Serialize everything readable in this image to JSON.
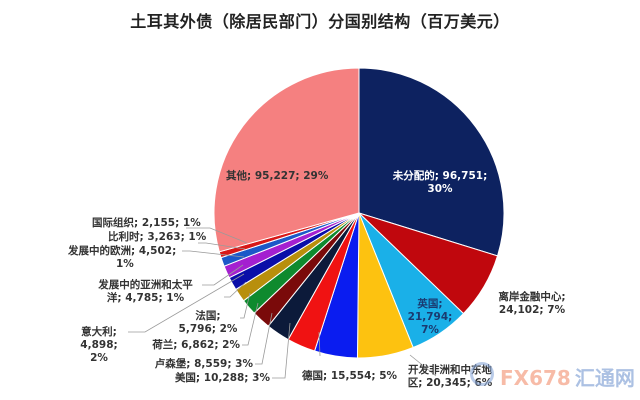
{
  "chart_data": {
    "type": "pie",
    "title": "土耳其外债（除居民部门）分国别结构（百万美元）",
    "unit": "百万美元",
    "start_angle_deg": 0,
    "direction": "clockwise",
    "slices": [
      {
        "name": "未分配的",
        "value": 96751,
        "pct": "30%",
        "color": "#0d2260"
      },
      {
        "name": "离岸金融中心",
        "value": 24102,
        "pct": "7%",
        "color": "#c0070d"
      },
      {
        "name": "英国",
        "value": 21794,
        "pct": "7%",
        "color": "#1ab0e8"
      },
      {
        "name": "开发非洲和中东地区",
        "value": 20345,
        "pct": "6%",
        "color": "#fdc210"
      },
      {
        "name": "德国",
        "value": 15554,
        "pct": "5%",
        "color": "#0a1cf0"
      },
      {
        "name": "美国",
        "value": 10288,
        "pct": "3%",
        "color": "#f01212"
      },
      {
        "name": "卢森堡",
        "value": 8559,
        "pct": "3%",
        "color": "#0c1a3a"
      },
      {
        "name": "荷兰",
        "value": 6862,
        "pct": "2%",
        "color": "#7a0a0a"
      },
      {
        "name": "法国",
        "value": 5796,
        "pct": "2%",
        "color": "#0e8a2e"
      },
      {
        "name": "意大利",
        "value": 4898,
        "pct": "2%",
        "color": "#b88f0c"
      },
      {
        "name": "发展中的亚洲和太平洋",
        "value": 4785,
        "pct": "1%",
        "color": "#0a0ea8"
      },
      {
        "name": "发展中的欧洲",
        "value": 4502,
        "pct": "1%",
        "color": "#a420d0"
      },
      {
        "name": "比利时",
        "value": 3263,
        "pct": "1%",
        "color": "#1c58c8"
      },
      {
        "name": "国际组织",
        "value": 2155,
        "pct": "1%",
        "color": "#d81818"
      },
      {
        "name": "其他",
        "value": 95227,
        "pct": "29%",
        "color": "#f58080"
      }
    ]
  },
  "labels": {
    "unallocated": {
      "line1": "未分配的; 96,751;",
      "line2": "30%"
    },
    "offshore": {
      "line1": "离岸金融中心;",
      "line2": "24,102; 7%"
    },
    "uk": {
      "line1": "英国;",
      "line2": "21,794;",
      "line3": "7%"
    },
    "africa_me": {
      "line1": "开发非洲和中东地",
      "line2": "区; 20,345; 6%"
    },
    "germany": {
      "line1": "德国; 15,554; 5%"
    },
    "usa": {
      "line1": "美国; 10,288; 3%"
    },
    "luxembourg": {
      "line1": "卢森堡; 8,559; 3%"
    },
    "netherlands": {
      "line1": "荷兰; 6,862; 2%"
    },
    "france": {
      "line1": "法国;",
      "line2": "5,796; 2%"
    },
    "italy": {
      "line1": "意大利;",
      "line2": "4,898;",
      "line3": "2%"
    },
    "dev_asia": {
      "line1": "发展中的亚洲和太平",
      "line2": "洋; 4,785; 1%"
    },
    "dev_europe": {
      "line1": "发展中的欧洲; 4,502;",
      "line2": "1%"
    },
    "belgium": {
      "line1": "比利时; 3,263; 1%"
    },
    "intl_org": {
      "line1": "国际组织; 2,155; 1%"
    },
    "other": {
      "line1": "其他; 95,227; 29%"
    }
  },
  "watermark": {
    "brand": "FX678",
    "site": "汇通网"
  }
}
